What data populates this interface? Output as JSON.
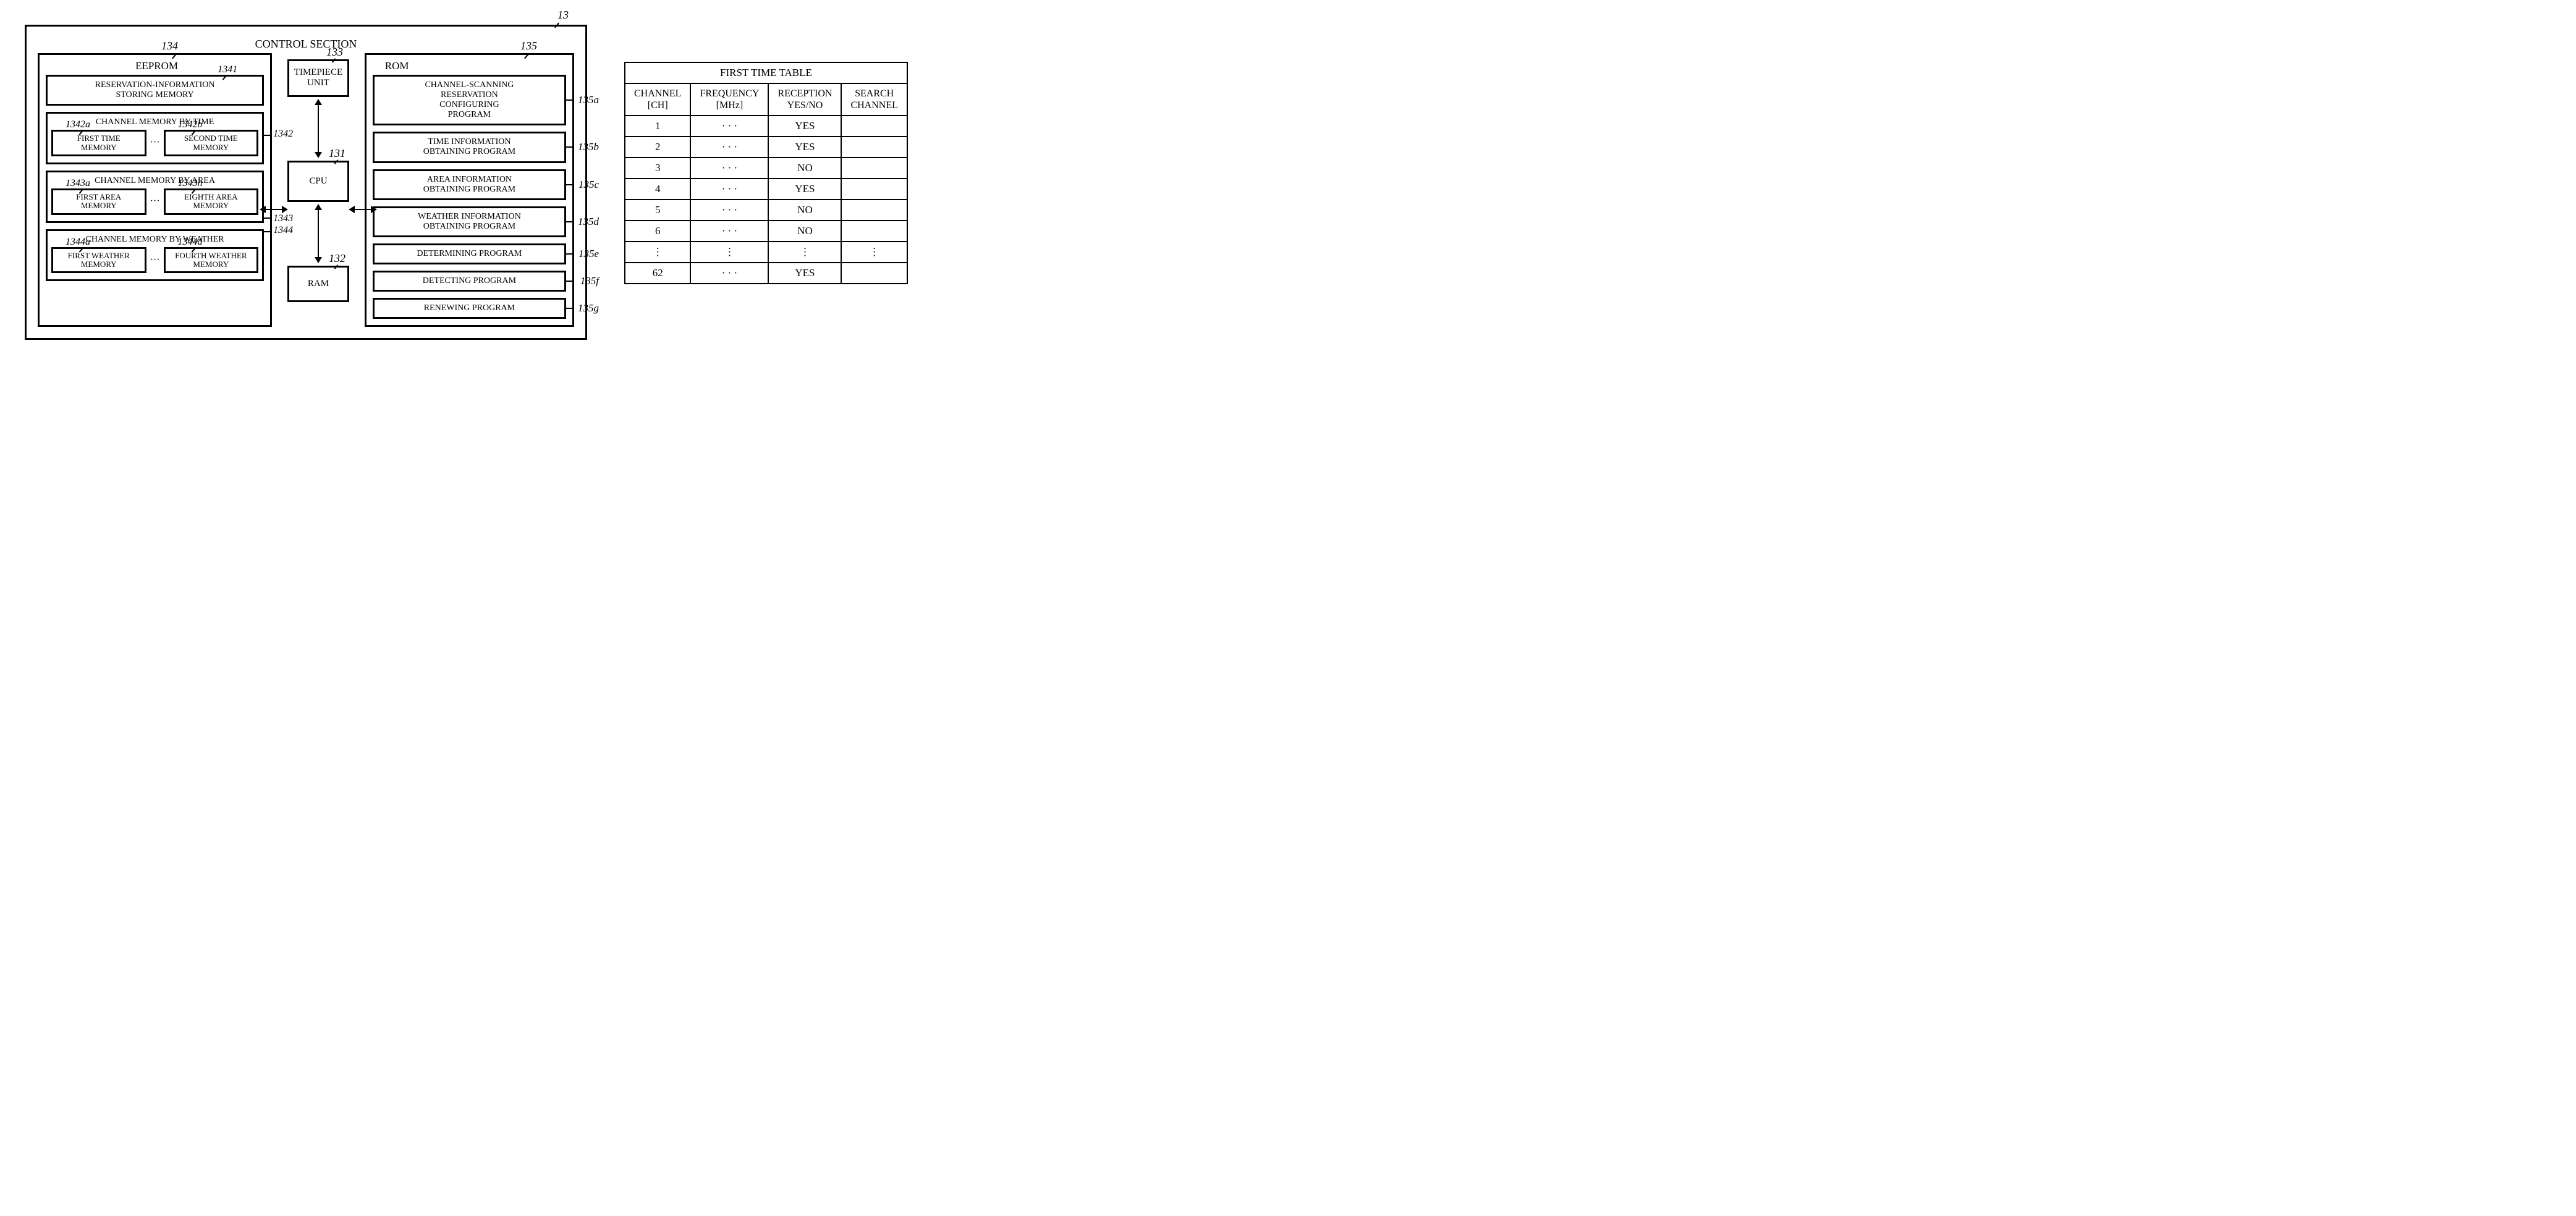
{
  "diagram": {
    "title": "CONTROL SECTION",
    "outer_ref": "13",
    "eeprom": {
      "title": "EEPROM",
      "ref": "134",
      "reservation": {
        "label": "RESERVATION-INFORMATION\nSTORING MEMORY",
        "ref": "1341"
      },
      "ch_time": {
        "title": "CHANNEL MEMORY BY TIME",
        "ref": "1342",
        "first": {
          "label": "FIRST TIME\nMEMORY",
          "ref": "1342a"
        },
        "second": {
          "label": "SECOND TIME\nMEMORY",
          "ref": "1342b"
        }
      },
      "ch_area": {
        "title": "CHANNEL MEMORY BY AREA",
        "ref": "1343",
        "first": {
          "label": "FIRST AREA\nMEMORY",
          "ref": "1343a"
        },
        "eighth": {
          "label": "EIGHTH AREA\nMEMORY",
          "ref": "1343h"
        }
      },
      "ch_weather": {
        "title": "CHANNEL MEMORY BY WEATHER",
        "ref": "1344",
        "first": {
          "label": "FIRST WEATHER\nMEMORY",
          "ref": "1344a"
        },
        "fourth": {
          "label": "FOURTH WEATHER\nMEMORY",
          "ref": "1344d"
        }
      }
    },
    "timepiece": {
      "label": "TIMEPIECE\nUNIT",
      "ref": "133"
    },
    "cpu": {
      "label": "CPU",
      "ref": "131"
    },
    "ram": {
      "label": "RAM",
      "ref": "132"
    },
    "rom": {
      "title": "ROM",
      "ref": "135",
      "items": [
        {
          "label": "CHANNEL-SCANNING\nRESERVATION\nCONFIGURING\nPROGRAM",
          "ref": "135a"
        },
        {
          "label": "TIME INFORMATION\nOBTAINING PROGRAM",
          "ref": "135b"
        },
        {
          "label": "AREA INFORMATION\nOBTAINING PROGRAM",
          "ref": "135c"
        },
        {
          "label": "WEATHER INFORMATION\nOBTAINING PROGRAM",
          "ref": "135d"
        },
        {
          "label": "DETERMINING PROGRAM",
          "ref": "135e"
        },
        {
          "label": "DETECTING PROGRAM",
          "ref": "135f"
        },
        {
          "label": "RENEWING PROGRAM",
          "ref": "135g"
        }
      ]
    }
  },
  "table": {
    "title": "FIRST TIME TABLE",
    "columns": [
      "CHANNEL\n[CH]",
      "FREQUENCY\n[MHz]",
      "RECEPTION\nYES/NO",
      "SEARCH\nCHANNEL"
    ],
    "rows": [
      [
        "1",
        "· · ·",
        "YES",
        ""
      ],
      [
        "2",
        "· · ·",
        "YES",
        ""
      ],
      [
        "3",
        "· · ·",
        "NO",
        ""
      ],
      [
        "4",
        "· · ·",
        "YES",
        ""
      ],
      [
        "5",
        "· · ·",
        "NO",
        ""
      ],
      [
        "6",
        "· · ·",
        "NO",
        ""
      ],
      [
        "⋮",
        "⋮",
        "⋮",
        "⋮"
      ],
      [
        "62",
        "· · ·",
        "YES",
        ""
      ]
    ]
  }
}
